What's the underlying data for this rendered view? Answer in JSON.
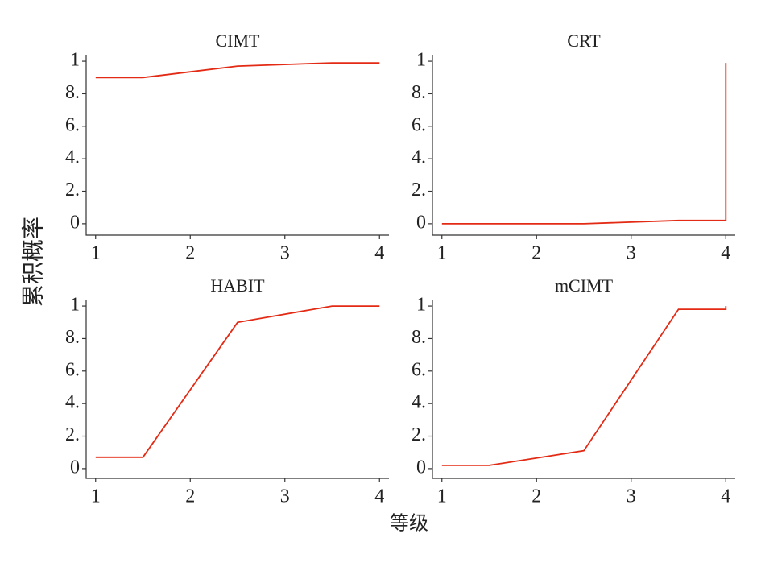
{
  "figure": {
    "xlabel": "等级",
    "ylabel": "累积概率"
  },
  "chart_data": [
    {
      "type": "line",
      "title": "CIMT",
      "color": "#e32a14",
      "x": [
        1,
        1.5,
        2.5,
        3.5,
        4
      ],
      "values": [
        0.9,
        0.9,
        0.97,
        0.99,
        0.99
      ],
      "xlim": [
        0.9,
        4.1
      ],
      "ylim": [
        -0.07,
        1.04
      ],
      "xticks": [
        1,
        2,
        3,
        4
      ],
      "yticks": [
        0,
        {
          "value": 0.2,
          "label": "2."
        },
        {
          "value": 0.4,
          "label": "4."
        },
        {
          "value": 0.6,
          "label": "6."
        },
        {
          "value": 0.8,
          "label": "8."
        },
        1
      ]
    },
    {
      "type": "line",
      "title": "CRT",
      "color": "#e32a14",
      "x": [
        1,
        2.5,
        3.5,
        4,
        4
      ],
      "values": [
        0,
        0,
        0.02,
        0.02,
        0.99
      ],
      "xlim": [
        0.9,
        4.1
      ],
      "ylim": [
        -0.07,
        1.04
      ],
      "xticks": [
        1,
        2,
        3,
        4
      ],
      "yticks": [
        0,
        {
          "value": 0.2,
          "label": "2."
        },
        {
          "value": 0.4,
          "label": "4."
        },
        {
          "value": 0.6,
          "label": "6."
        },
        {
          "value": 0.8,
          "label": "8."
        },
        1
      ]
    },
    {
      "type": "line",
      "title": "HABIT",
      "color": "#e32a14",
      "x": [
        1,
        1.5,
        2.5,
        3.5,
        4
      ],
      "values": [
        0.07,
        0.07,
        0.9,
        1,
        1
      ],
      "xlim": [
        0.9,
        4.1
      ],
      "ylim": [
        -0.06,
        1.04
      ],
      "xticks": [
        1,
        2,
        3,
        4
      ],
      "yticks": [
        0,
        {
          "value": 0.2,
          "label": "2."
        },
        {
          "value": 0.4,
          "label": "4."
        },
        {
          "value": 0.6,
          "label": "6."
        },
        {
          "value": 0.8,
          "label": "8."
        },
        1
      ]
    },
    {
      "type": "line",
      "title": "mCIMT",
      "color": "#e32a14",
      "x": [
        1,
        1.5,
        2.5,
        3.5,
        4,
        4
      ],
      "values": [
        0.02,
        0.02,
        0.11,
        0.98,
        0.98,
        1
      ],
      "xlim": [
        0.9,
        4.1
      ],
      "ylim": [
        -0.06,
        1.04
      ],
      "xticks": [
        1,
        2,
        3,
        4
      ],
      "yticks": [
        0,
        {
          "value": 0.2,
          "label": "2."
        },
        {
          "value": 0.4,
          "label": "4."
        },
        {
          "value": 0.6,
          "label": "6."
        },
        {
          "value": 0.8,
          "label": "8."
        },
        1
      ]
    }
  ]
}
